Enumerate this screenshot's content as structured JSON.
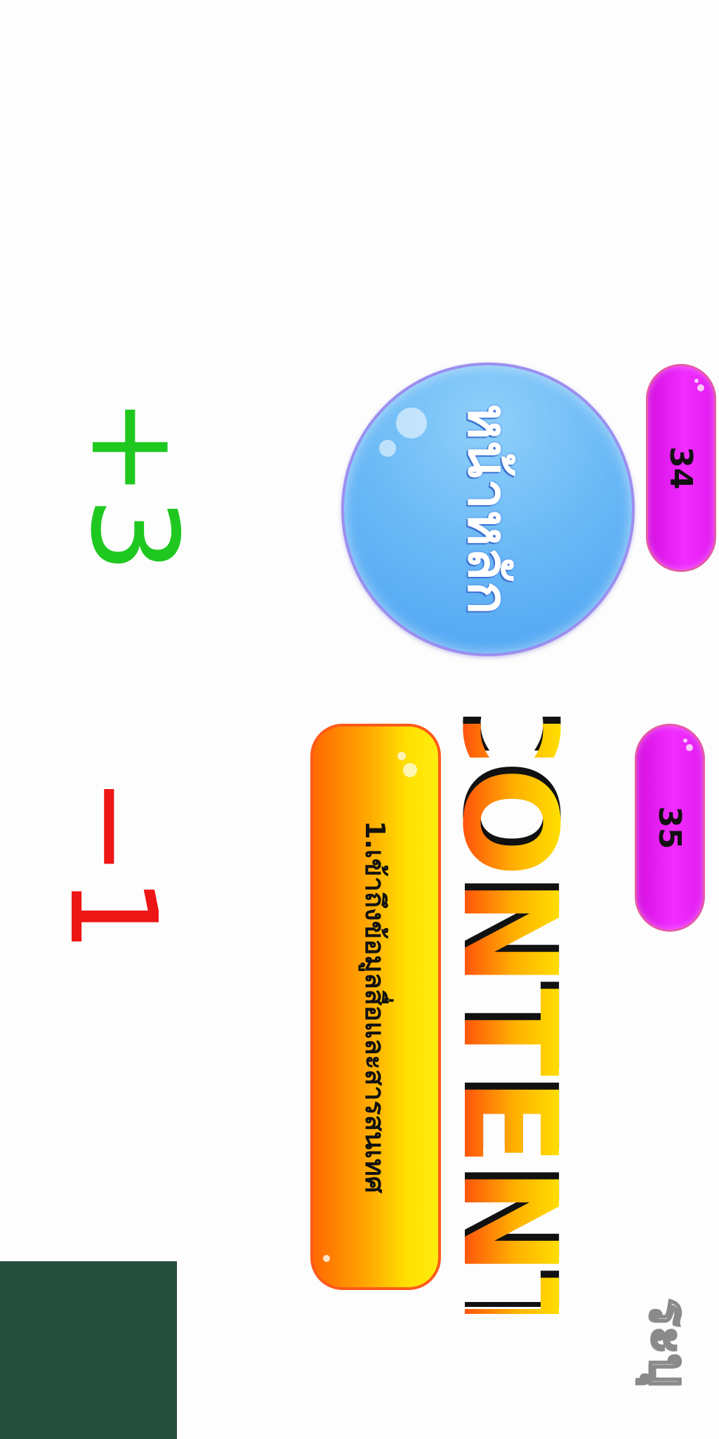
{
  "scores": {
    "plus": "+3",
    "minus": "−1"
  },
  "home_button": {
    "label": "หน้าหลัก"
  },
  "pages": {
    "first": "34",
    "second": "35"
  },
  "heading": {
    "text": "CONTENT"
  },
  "topic": {
    "label": "1.เข้าถึงข้อมูลสื่อและสารสนเทศ"
  },
  "logo": {
    "text": "ระบุ"
  },
  "colors": {
    "plus_score": "#1fc81f",
    "minus_score": "#ee1515",
    "home_bubble": "#6cbaf6",
    "page_pill": "#f12cff",
    "block": "#274f40"
  }
}
